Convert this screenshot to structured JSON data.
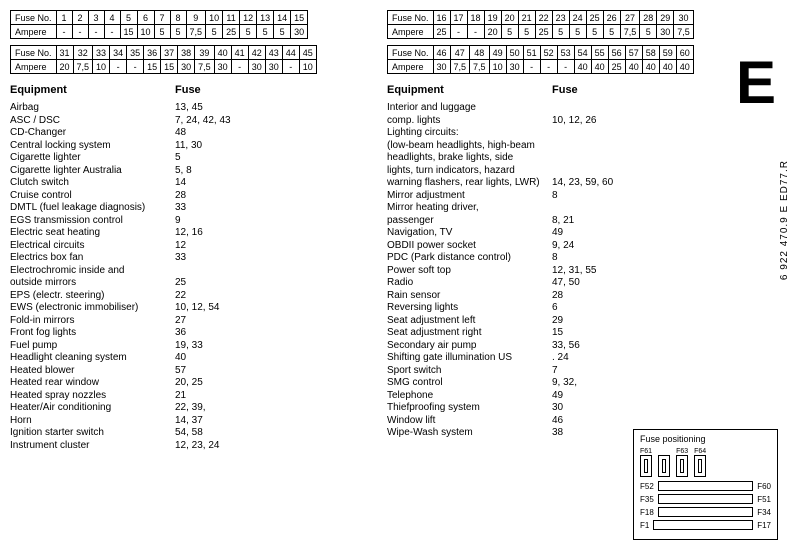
{
  "label_fuse_no": "Fuse No.",
  "label_ampere": "Ampere",
  "label_equipment": "Equipment",
  "label_fuse": "Fuse",
  "bigE": "E",
  "code": "6 922 470.9 E ED77.R",
  "fusepos_title": "Fuse positioning",
  "tables": {
    "t1": {
      "nums": [
        "1",
        "2",
        "3",
        "4",
        "5",
        "6",
        "7",
        "8",
        "9",
        "10",
        "11",
        "12",
        "13",
        "14",
        "15"
      ],
      "amps": [
        "-",
        "-",
        "-",
        "-",
        "15",
        "10",
        "5",
        "5",
        "7,5",
        "5",
        "25",
        "5",
        "5",
        "5",
        "30"
      ]
    },
    "t2": {
      "nums": [
        "31",
        "32",
        "33",
        "34",
        "35",
        "36",
        "37",
        "38",
        "39",
        "40",
        "41",
        "42",
        "43",
        "44",
        "45"
      ],
      "amps": [
        "20",
        "7,5",
        "10",
        "-",
        "-",
        "15",
        "15",
        "30",
        "7,5",
        "30",
        "-",
        "30",
        "30",
        "-",
        "10"
      ]
    },
    "t3": {
      "nums": [
        "16",
        "17",
        "18",
        "19",
        "20",
        "21",
        "22",
        "23",
        "24",
        "25",
        "26",
        "27",
        "28",
        "29",
        "30"
      ],
      "amps": [
        "25",
        "-",
        "-",
        "20",
        "5",
        "5",
        "25",
        "5",
        "5",
        "5",
        "5",
        "7,5",
        "5",
        "30",
        "7,5"
      ]
    },
    "t4": {
      "nums": [
        "46",
        "47",
        "48",
        "49",
        "50",
        "51",
        "52",
        "53",
        "54",
        "55",
        "56",
        "57",
        "58",
        "59",
        "60"
      ],
      "amps": [
        "30",
        "7,5",
        "7,5",
        "10",
        "30",
        "-",
        "-",
        "-",
        "40",
        "40",
        "25",
        "40",
        "40",
        "40",
        "40"
      ]
    }
  },
  "fusepos": {
    "top": [
      "F61",
      "",
      "F63",
      "F64"
    ],
    "rows": [
      [
        "F52",
        "F60"
      ],
      [
        "F35",
        "F51"
      ],
      [
        "F18",
        "F34"
      ],
      [
        "F1",
        "F17"
      ]
    ]
  },
  "left_list": [
    [
      "Airbag",
      "13, 45"
    ],
    [
      "ASC / DSC",
      "7, 24, 42, 43"
    ],
    [
      "CD-Changer",
      "48"
    ],
    [
      "Central locking system",
      "11, 30"
    ],
    [
      "Cigarette lighter",
      "5"
    ],
    [
      "Cigarette lighter Australia",
      "5, 8"
    ],
    [
      "Clutch switch",
      "14"
    ],
    [
      "Cruise control",
      "28"
    ],
    [
      "DMTL (fuel leakage diagnosis)",
      "33"
    ],
    [
      "EGS transmission control",
      "9"
    ],
    [
      "Electric seat heating",
      "12, 16"
    ],
    [
      "Electrical circuits",
      "12"
    ],
    [
      "Electrics box fan",
      "33"
    ],
    [
      "Electrochromic inside and",
      ""
    ],
    [
      "outside mirrors",
      "25"
    ],
    [
      "EPS (electr. steering)",
      "22"
    ],
    [
      "EWS (electronic immobiliser)",
      "10, 12, 54"
    ],
    [
      "Fold-in mirrors",
      "27"
    ],
    [
      "Front fog lights",
      "36"
    ],
    [
      "Fuel pump",
      "19, 33"
    ],
    [
      "Headlight cleaning system",
      "40"
    ],
    [
      "Heated blower",
      "57"
    ],
    [
      "Heated rear window",
      "20, 25"
    ],
    [
      "Heated spray nozzles",
      "21"
    ],
    [
      "Heater/Air conditioning",
      "22, 39,"
    ],
    [
      "Horn",
      "14, 37"
    ],
    [
      "Ignition starter switch",
      "54, 58"
    ],
    [
      "Instrument cluster",
      "12, 23, 24"
    ]
  ],
  "right_list": [
    [
      "Interior and luggage",
      ""
    ],
    [
      "comp. lights",
      "10, 12, 26"
    ],
    [
      "Lighting circuits:",
      ""
    ],
    [
      "(low-beam headlights, high-beam",
      ""
    ],
    [
      "headlights, brake lights, side",
      ""
    ],
    [
      "lights, turn indicators, hazard",
      ""
    ],
    [
      "warning flashers, rear lights, LWR)",
      "14, 23, 59, 60"
    ],
    [
      "Mirror adjustment",
      "8"
    ],
    [
      "Mirror heating driver,",
      ""
    ],
    [
      "passenger",
      "8, 21"
    ],
    [
      "Navigation, TV",
      "49"
    ],
    [
      "OBDII power socket",
      "9, 24"
    ],
    [
      "PDC (Park distance control)",
      "8"
    ],
    [
      "Power soft top",
      "12, 31, 55"
    ],
    [
      "Radio",
      "47, 50"
    ],
    [
      "Rain sensor",
      "28"
    ],
    [
      "Reversing lights",
      "6"
    ],
    [
      "Seat adjustment left",
      "29"
    ],
    [
      "Seat adjustment right",
      "15"
    ],
    [
      "Secondary air pump",
      "33, 56"
    ],
    [
      "Shifting gate illumination US",
      ". 24"
    ],
    [
      "Sport switch",
      "7"
    ],
    [
      "SMG control",
      "9, 32,"
    ],
    [
      "Telephone",
      "49"
    ],
    [
      "Thiefproofing system",
      "30"
    ],
    [
      "Window lift",
      "46"
    ],
    [
      "Wipe-Wash system",
      "38"
    ]
  ]
}
